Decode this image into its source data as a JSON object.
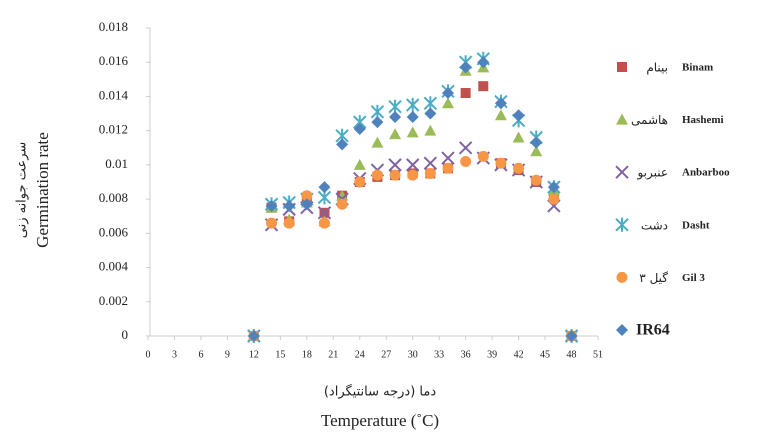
{
  "chart_data": {
    "type": "scatter",
    "x_label": "Temperature (˚C)",
    "x_label_fa": "دما (درجه سانتیگراد)",
    "y_label": "Germination rate",
    "y_label_fa": "سرعت جوانه زنی",
    "x": [
      12,
      14,
      16,
      18,
      20,
      22,
      24,
      26,
      28,
      30,
      32,
      34,
      36,
      38,
      40,
      42,
      44,
      46,
      48
    ],
    "xlim": [
      0,
      51
    ],
    "xticks": [
      0,
      3,
      6,
      9,
      12,
      15,
      18,
      21,
      24,
      27,
      30,
      33,
      36,
      39,
      42,
      45,
      48,
      51
    ],
    "ylim": [
      0,
      0.018
    ],
    "yticks": [
      0,
      0.002,
      0.004,
      0.006,
      0.008,
      0.01,
      0.012,
      0.014,
      0.016,
      0.018
    ],
    "legend": "right",
    "series": [
      {
        "name": "Binam",
        "name_fa": "بینام",
        "color": "#c0504d",
        "marker": "square",
        "values": [
          0,
          0.0075,
          0.0067,
          0.0078,
          0.0072,
          0.0082,
          0.009,
          0.0093,
          0.0094,
          0.0095,
          0.0095,
          0.0098,
          0.0142,
          0.0146,
          0.0101,
          0.0097,
          0.009,
          0.0082,
          0
        ]
      },
      {
        "name": "Hashemi",
        "name_fa": "هاشمی",
        "color": "#9bbb59",
        "marker": "triangle",
        "values": [
          0,
          0.0075,
          0.0068,
          0.0078,
          0.0067,
          0.0082,
          0.01,
          0.0113,
          0.0118,
          0.0119,
          0.012,
          0.0136,
          0.0155,
          0.0157,
          0.0129,
          0.0116,
          0.0108,
          0.0085,
          0
        ]
      },
      {
        "name": "Anbarboo",
        "name_fa": "عنبربو",
        "color": "#8064a2",
        "marker": "x",
        "values": [
          0,
          0.0065,
          0.0074,
          0.0075,
          0.0072,
          0.008,
          0.0092,
          0.0097,
          0.01,
          0.01,
          0.0101,
          0.0104,
          0.011,
          0.0104,
          0.01,
          0.0097,
          0.009,
          0.0076,
          0
        ]
      },
      {
        "name": "Dasht",
        "name_fa": "دشت",
        "color": "#4bacc6",
        "marker": "star",
        "values": [
          0,
          0.0077,
          0.0078,
          0.008,
          0.0081,
          0.0117,
          0.0125,
          0.0131,
          0.0134,
          0.0135,
          0.0136,
          0.0143,
          0.016,
          0.0162,
          0.0137,
          0.0126,
          0.0116,
          0.0087,
          0
        ]
      },
      {
        "name": "Gil 3",
        "name_fa": "گیل ۳",
        "color": "#f79646",
        "marker": "circle",
        "values": [
          0,
          0.0066,
          0.0066,
          0.0082,
          0.0066,
          0.0077,
          0.009,
          0.0094,
          0.0094,
          0.0094,
          0.0095,
          0.0098,
          0.0102,
          0.0105,
          0.0101,
          0.0098,
          0.0091,
          0.008,
          0
        ]
      },
      {
        "name": "IR64",
        "color": "#4f81bd",
        "marker": "diamond",
        "values": [
          0,
          0.0076,
          0.0076,
          0.0077,
          0.0087,
          0.0112,
          0.0121,
          0.0125,
          0.0128,
          0.0128,
          0.013,
          0.0142,
          0.0157,
          0.016,
          0.0136,
          0.0129,
          0.0113,
          0.0087,
          0
        ]
      }
    ]
  }
}
